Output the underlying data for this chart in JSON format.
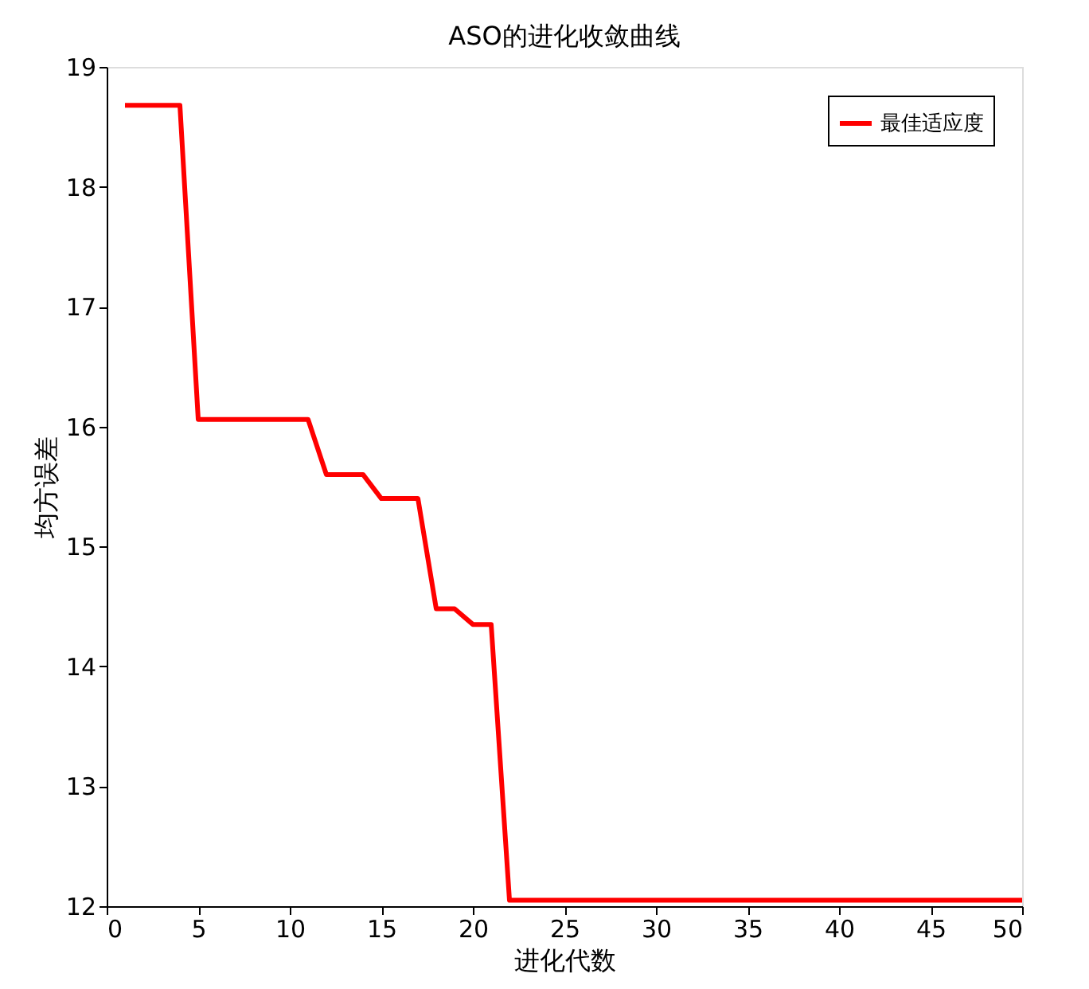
{
  "chart_data": {
    "type": "line",
    "title": "ASO的进化收敛曲线",
    "xlabel": "进化代数",
    "ylabel": "均方误差",
    "x": [
      1,
      4,
      5,
      11,
      12,
      14,
      15,
      17,
      18,
      19,
      20,
      21,
      22,
      50
    ],
    "series": [
      {
        "name": "最佳适应度",
        "color": "#ff0000",
        "values": [
          18.68,
          18.68,
          16.06,
          16.06,
          15.6,
          15.6,
          15.4,
          15.4,
          14.48,
          14.48,
          14.35,
          14.35,
          12.05,
          12.05
        ]
      }
    ],
    "xlim": [
      0,
      50
    ],
    "xticks": [
      0,
      5,
      10,
      15,
      20,
      25,
      30,
      35,
      40,
      45,
      50
    ],
    "ylim": [
      12,
      19
    ],
    "yticks": [
      12,
      13,
      14,
      15,
      16,
      17,
      18,
      19
    ],
    "grid": false,
    "legend": "top right",
    "marker": "none",
    "line_style": "solid"
  }
}
